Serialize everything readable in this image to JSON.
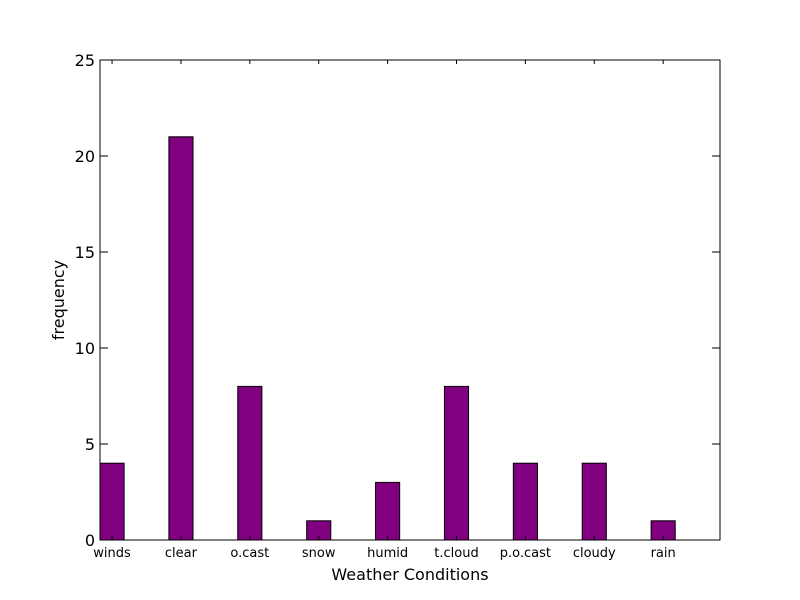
{
  "chart_data": {
    "type": "bar",
    "categories": [
      "winds",
      "clear",
      "o.cast",
      "snow",
      "humid",
      "t.cloud",
      "p.o.cast",
      "cloudy",
      "rain"
    ],
    "values": [
      4,
      21,
      8,
      1,
      3,
      8,
      4,
      4,
      1
    ],
    "title": "",
    "xlabel": "Weather Conditions",
    "ylabel": "frequency",
    "ylim": [
      0,
      25
    ],
    "yticks": [
      0,
      5,
      10,
      15,
      20,
      25
    ],
    "grid": false,
    "legend": "none",
    "colors": {
      "bar": "#800080",
      "edge": "#000000"
    }
  }
}
